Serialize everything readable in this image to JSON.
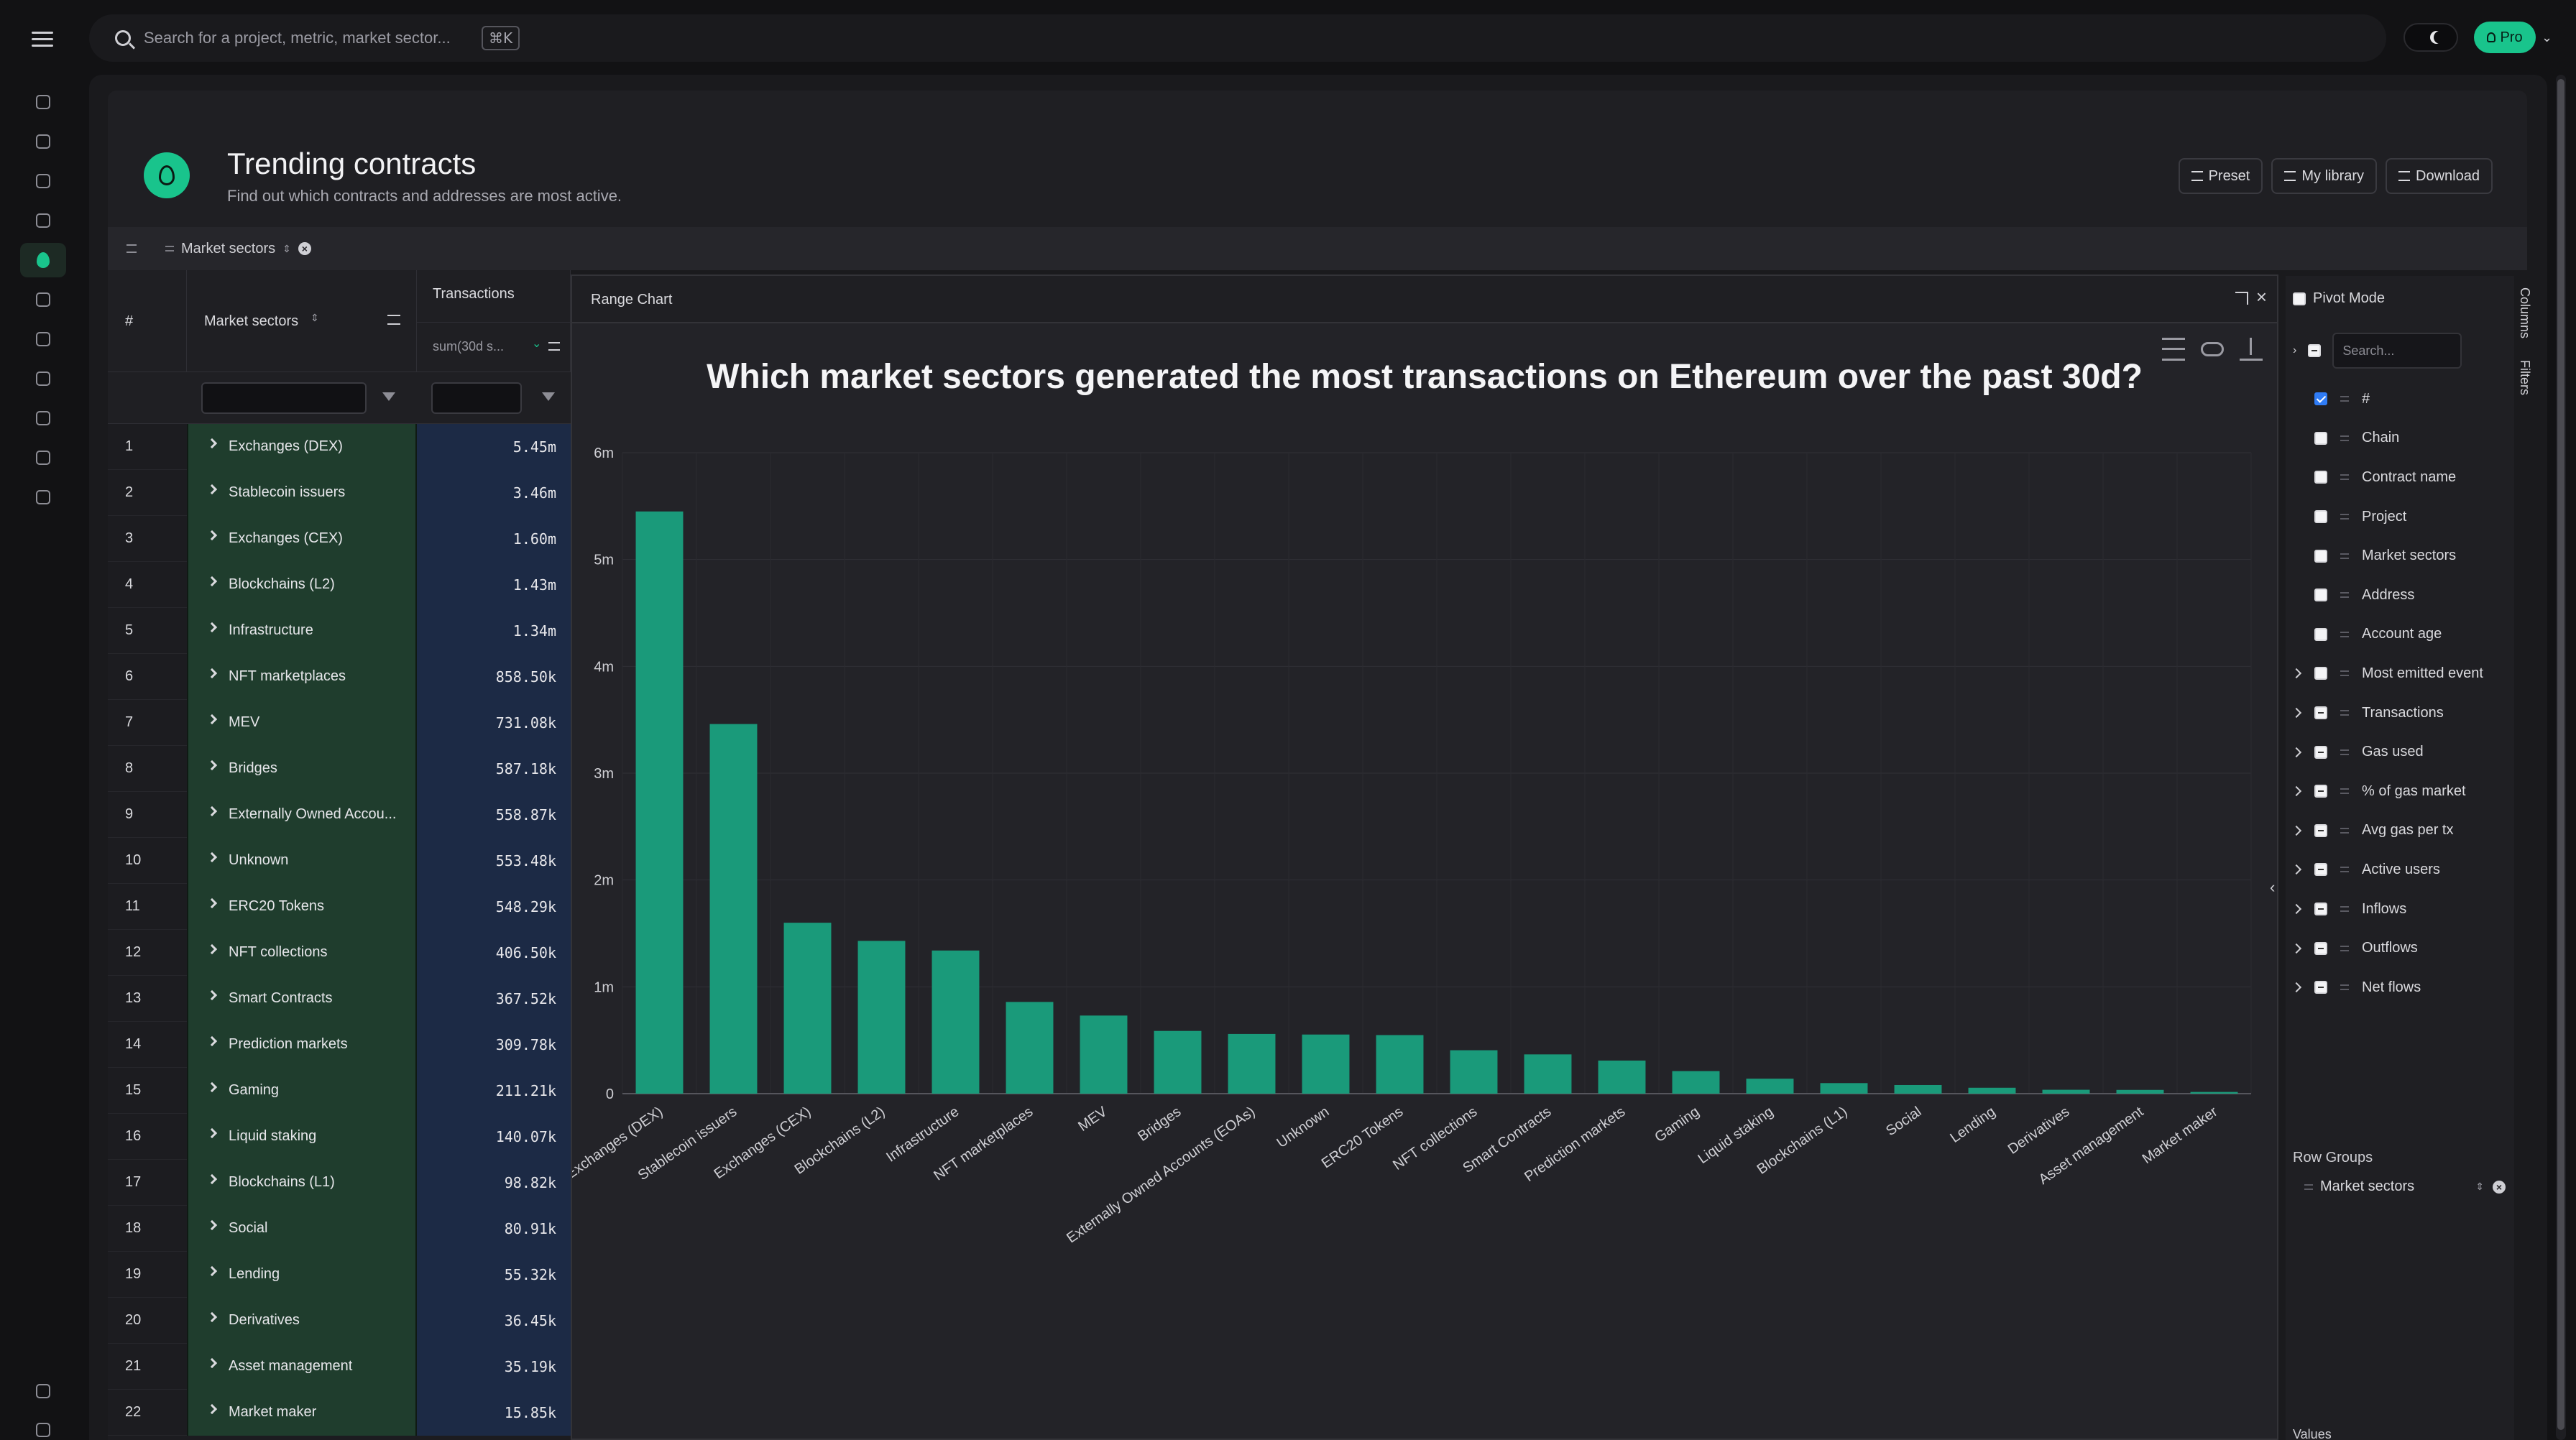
{
  "search": {
    "placeholder": "Search for a project, metric, market sector...",
    "shortcut": "⌘K"
  },
  "account": {
    "plan_label": "Pro"
  },
  "page": {
    "title": "Trending contracts",
    "subtitle": "Find out which contracts and addresses are most active.",
    "buttons": {
      "preset": "Preset",
      "library": "My library",
      "download": "Download"
    }
  },
  "group_bar": {
    "chip_label": "Market sectors"
  },
  "grid": {
    "headers": {
      "index": "#",
      "sector": "Market sectors",
      "transactions": "Transactions",
      "transactions_sub": "sum(30d s..."
    },
    "rows": [
      {
        "i": "1",
        "name": "Exchanges (DEX)",
        "value": "5.45m"
      },
      {
        "i": "2",
        "name": "Stablecoin issuers",
        "value": "3.46m"
      },
      {
        "i": "3",
        "name": "Exchanges (CEX)",
        "value": "1.60m"
      },
      {
        "i": "4",
        "name": "Blockchains (L2)",
        "value": "1.43m"
      },
      {
        "i": "5",
        "name": "Infrastructure",
        "value": "1.34m"
      },
      {
        "i": "6",
        "name": "NFT marketplaces",
        "value": "858.50k"
      },
      {
        "i": "7",
        "name": "MEV",
        "value": "731.08k"
      },
      {
        "i": "8",
        "name": "Bridges",
        "value": "587.18k"
      },
      {
        "i": "9",
        "name": "Externally Owned Accou...",
        "value": "558.87k"
      },
      {
        "i": "10",
        "name": "Unknown",
        "value": "553.48k"
      },
      {
        "i": "11",
        "name": "ERC20 Tokens",
        "value": "548.29k"
      },
      {
        "i": "12",
        "name": "NFT collections",
        "value": "406.50k"
      },
      {
        "i": "13",
        "name": "Smart Contracts",
        "value": "367.52k"
      },
      {
        "i": "14",
        "name": "Prediction markets",
        "value": "309.78k"
      },
      {
        "i": "15",
        "name": "Gaming",
        "value": "211.21k"
      },
      {
        "i": "16",
        "name": "Liquid staking",
        "value": "140.07k"
      },
      {
        "i": "17",
        "name": "Blockchains (L1)",
        "value": "98.82k"
      },
      {
        "i": "18",
        "name": "Social",
        "value": "80.91k"
      },
      {
        "i": "19",
        "name": "Lending",
        "value": "55.32k"
      },
      {
        "i": "20",
        "name": "Derivatives",
        "value": "36.45k"
      },
      {
        "i": "21",
        "name": "Asset management",
        "value": "35.19k"
      },
      {
        "i": "22",
        "name": "Market maker",
        "value": "15.85k"
      }
    ]
  },
  "chart_panel": {
    "label": "Range Chart"
  },
  "chart_data": {
    "type": "bar",
    "title": "Which market sectors generated the most transactions on Ethereum over the past 30d?",
    "categories": [
      "Exchanges (DEX)",
      "Stablecoin issuers",
      "Exchanges (CEX)",
      "Blockchains (L2)",
      "Infrastructure",
      "NFT marketplaces",
      "MEV",
      "Bridges",
      "Externally Owned Accounts (EOAs)",
      "Unknown",
      "ERC20 Tokens",
      "NFT collections",
      "Smart Contracts",
      "Prediction markets",
      "Gaming",
      "Liquid staking",
      "Blockchains (L1)",
      "Social",
      "Lending",
      "Derivatives",
      "Asset management",
      "Market maker"
    ],
    "values": [
      5450000,
      3460000,
      1600000,
      1430000,
      1340000,
      858500,
      731080,
      587180,
      558870,
      553480,
      548290,
      406500,
      367520,
      309780,
      211210,
      140070,
      98820,
      80910,
      55320,
      36450,
      35190,
      15850
    ],
    "ylim": [
      0,
      6000000
    ],
    "yticks": [
      {
        "v": 0,
        "label": "0"
      },
      {
        "v": 1000000,
        "label": "1m"
      },
      {
        "v": 2000000,
        "label": "2m"
      },
      {
        "v": 3000000,
        "label": "3m"
      },
      {
        "v": 4000000,
        "label": "4m"
      },
      {
        "v": 5000000,
        "label": "5m"
      },
      {
        "v": 6000000,
        "label": "6m"
      }
    ],
    "grid": true,
    "bar_color": "#1a9a7a",
    "xlabel": "",
    "ylabel": ""
  },
  "tool_panel": {
    "pivot_label": "Pivot Mode",
    "search_placeholder": "Search...",
    "columns": [
      {
        "name": "#",
        "state": "checked",
        "expandable": false
      },
      {
        "name": "Chain",
        "state": "unchecked",
        "expandable": false
      },
      {
        "name": "Contract name",
        "state": "unchecked",
        "expandable": false
      },
      {
        "name": "Project",
        "state": "unchecked",
        "expandable": false
      },
      {
        "name": "Market sectors",
        "state": "unchecked",
        "expandable": false
      },
      {
        "name": "Address",
        "state": "unchecked",
        "expandable": false
      },
      {
        "name": "Account age",
        "state": "unchecked",
        "expandable": false
      },
      {
        "name": "Most emitted event",
        "state": "unchecked",
        "expandable": true
      },
      {
        "name": "Transactions",
        "state": "partial",
        "expandable": true
      },
      {
        "name": "Gas used",
        "state": "partial",
        "expandable": true
      },
      {
        "name": "% of gas market",
        "state": "partial",
        "expandable": true
      },
      {
        "name": "Avg gas per tx",
        "state": "partial",
        "expandable": true
      },
      {
        "name": "Active users",
        "state": "partial",
        "expandable": true
      },
      {
        "name": "Inflows",
        "state": "partial",
        "expandable": true
      },
      {
        "name": "Outflows",
        "state": "partial",
        "expandable": true
      },
      {
        "name": "Net flows",
        "state": "partial",
        "expandable": true
      }
    ],
    "tabs": {
      "columns": "Columns",
      "filters": "Filters"
    },
    "row_groups_label": "Row Groups",
    "row_group_chip": "Market sectors",
    "values_label": "Values"
  }
}
